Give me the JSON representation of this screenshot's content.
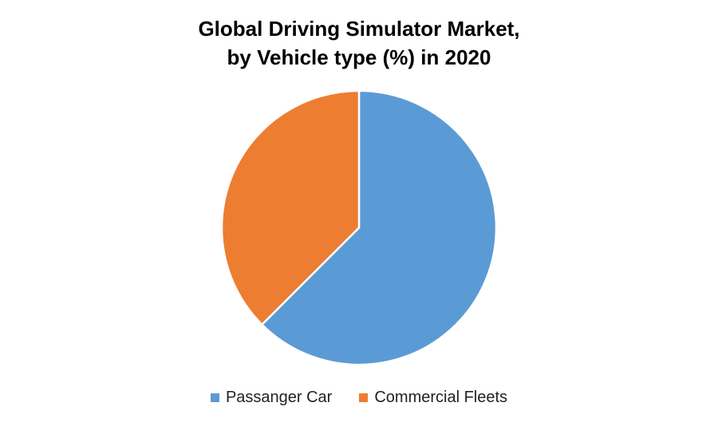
{
  "chart_data": {
    "type": "pie",
    "title_lines": [
      "Global Driving Simulator Market,",
      "by Vehicle type (%) in 2020"
    ],
    "slices": [
      {
        "label": "Passanger Car",
        "value": 62.5,
        "color": "#5B9BD5"
      },
      {
        "label": "Commercial Fleets",
        "value": 37.5,
        "color": "#ED7D31"
      }
    ],
    "legend_position": "bottom"
  }
}
